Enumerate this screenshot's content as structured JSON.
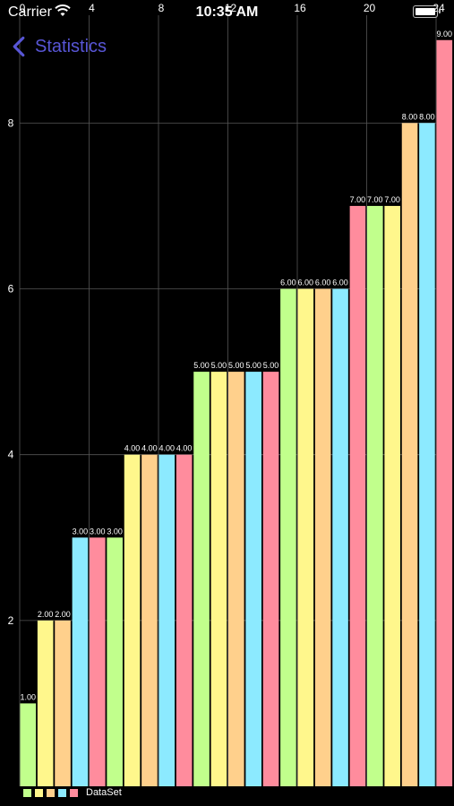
{
  "status_bar": {
    "carrier": "Carrier",
    "time": "10:35 AM"
  },
  "nav": {
    "back_label": "Statistics"
  },
  "colors": {
    "background": "#000000",
    "grid": "#555555",
    "text": "#ffffff",
    "accent": "#5856d6",
    "palette": [
      "#c1ff8c",
      "#fff78c",
      "#ffd08c",
      "#8ceaff",
      "#ff8c9d"
    ]
  },
  "chart_data": {
    "type": "bar",
    "x_top_ticks": [
      "0",
      "4",
      "8",
      "12",
      "16",
      "20",
      "24"
    ],
    "xlim": [
      0,
      24
    ],
    "ylim": [
      0,
      9.3
    ],
    "y_ticks": [
      "2",
      "4",
      "6",
      "8"
    ],
    "grid": true,
    "legend_position": "bottom-left",
    "series": [
      {
        "name": "DataSet",
        "x": [
          0,
          1,
          2,
          3,
          4,
          5,
          6,
          7,
          8,
          9,
          10,
          11,
          12,
          13,
          14,
          15,
          16,
          17,
          18,
          19,
          20,
          21,
          22,
          23
        ],
        "values": [
          1,
          2,
          2,
          3,
          3,
          3,
          4,
          4,
          4,
          4,
          5,
          5,
          5,
          5,
          5,
          6,
          6,
          6,
          6,
          7,
          7,
          7,
          8,
          8
        ],
        "data_labels": [
          "1.00",
          "2.00",
          "2.00",
          "3.00",
          "3.00",
          "3.00",
          "4.00",
          "4.00",
          "4.00",
          "4.00",
          "5.00",
          "5.00",
          "5.00",
          "5.00",
          "5.00",
          "6.00",
          "6.00",
          "6.00",
          "6.00",
          "7.00",
          "7.00",
          "7.00",
          "8.00",
          "8.00"
        ]
      },
      {
        "name": "",
        "x": [
          24
        ],
        "values": [
          9
        ],
        "data_labels": [
          "9.00"
        ]
      }
    ]
  },
  "legend": {
    "label": "DataSet"
  }
}
